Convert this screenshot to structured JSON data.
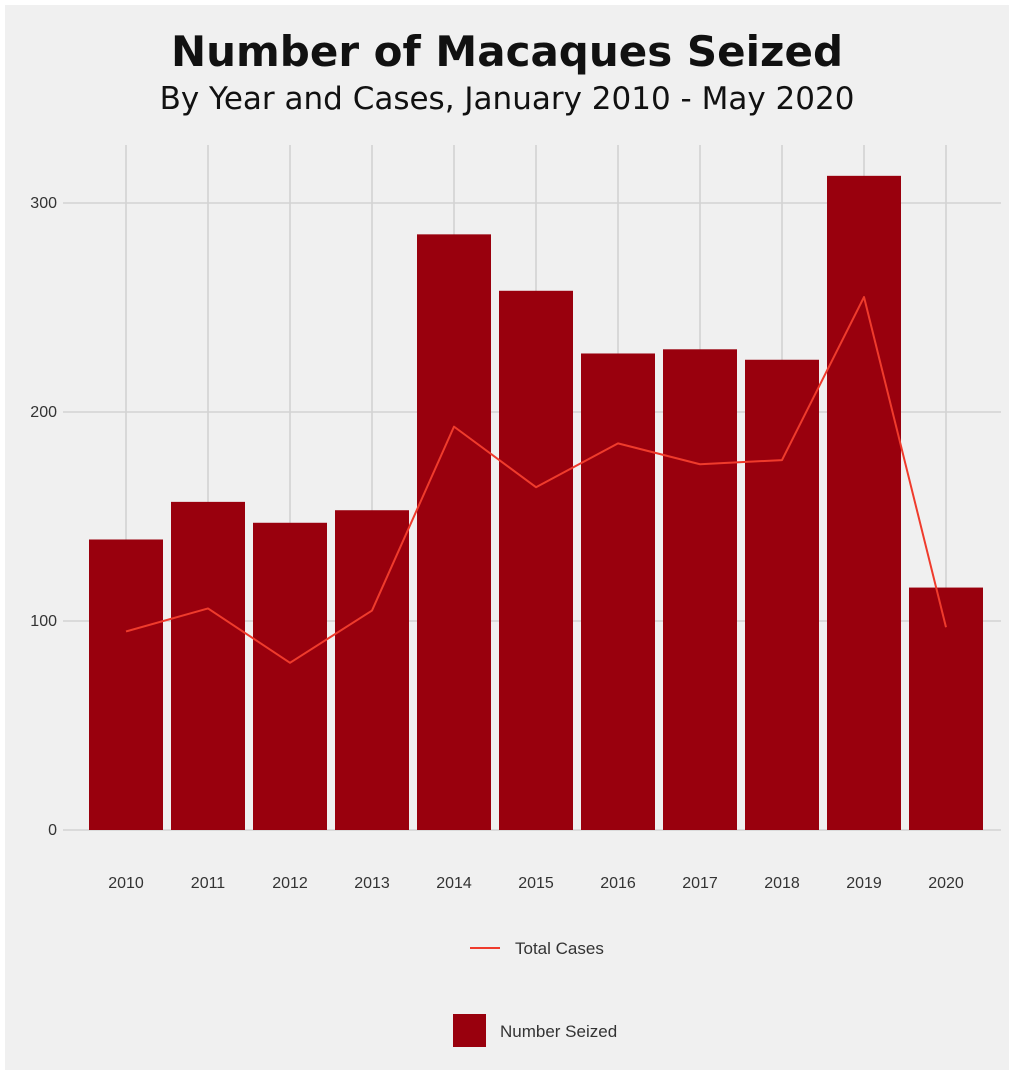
{
  "chart_data": {
    "type": "bar",
    "title": "Number of Macaques Seized",
    "subtitle": "By Year and Cases, January 2010 - May 2020",
    "xlabel": "",
    "ylabel": "",
    "categories": [
      "2010",
      "2011",
      "2012",
      "2013",
      "2014",
      "2015",
      "2016",
      "2017",
      "2018",
      "2019",
      "2020"
    ],
    "series": [
      {
        "name": "Number Seized",
        "type": "bar",
        "color": "#99000d",
        "values": [
          139,
          157,
          147,
          153,
          285,
          258,
          228,
          230,
          225,
          313,
          116
        ]
      },
      {
        "name": "Total Cases",
        "type": "line",
        "color": "#ef3b2c",
        "values": [
          95,
          106,
          80,
          105,
          193,
          164,
          185,
          175,
          177,
          255,
          97
        ]
      }
    ],
    "ylim": [
      0,
      330
    ],
    "yticks": [
      0,
      100,
      200,
      300
    ],
    "grid": true,
    "legend": {
      "position": "bottom",
      "line_entry": "Total Cases",
      "bar_entry": "Number Seized"
    }
  },
  "colors": {
    "panel_background": "#f0f0f0",
    "grid": "#d2d2d2",
    "bar": "#99000d",
    "line": "#ef3b2c"
  }
}
